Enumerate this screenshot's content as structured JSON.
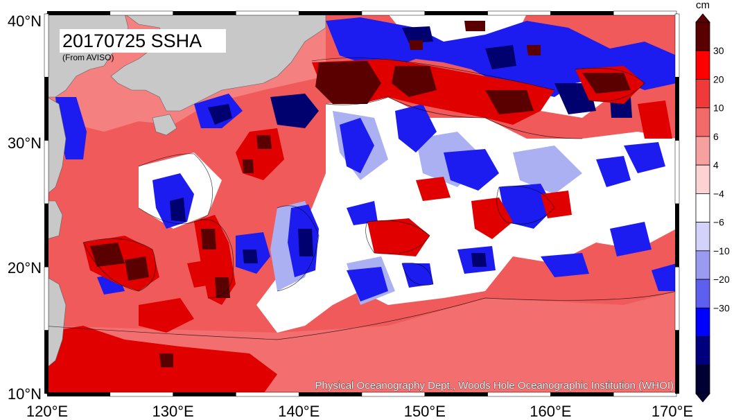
{
  "map": {
    "title": "20170725 SSHA",
    "subtitle": "(From AVISO)",
    "credit": "Physical Oceanography Dept., Woods Hole Oceanographic Institution (WHOI)",
    "lon_labels": [
      "120°E",
      "130°E",
      "140°E",
      "150°E",
      "160°E",
      "170°E"
    ],
    "lat_labels": [
      "10°N",
      "20°N",
      "30°N",
      "40°N"
    ],
    "lon_range": [
      120,
      170
    ],
    "lat_range": [
      10,
      40
    ],
    "colorbar": {
      "unit": "cm",
      "labels": [
        "30",
        "20",
        "10",
        "6",
        "4",
        "−4",
        "−6",
        "−10",
        "−20",
        "−30"
      ],
      "colors": [
        "#5a0000",
        "#ff0000",
        "#f03a3a",
        "#f36a6a",
        "#f7a0a0",
        "#fcd2d2",
        "#ffffff",
        "#d2d2fa",
        "#9a9af0",
        "#5f5fef",
        "#0000ff",
        "#00007f",
        "#000033"
      ]
    },
    "colors": {
      "land": "#c8c8c8",
      "background": "#f05a5a"
    }
  }
}
